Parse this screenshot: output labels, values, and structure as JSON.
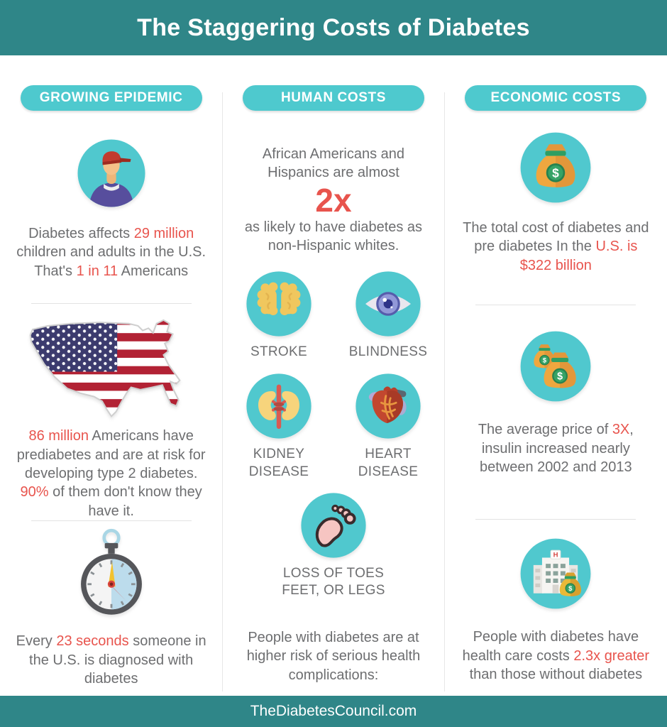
{
  "header": {
    "title": "The Staggering Costs of Diabetes"
  },
  "footer": {
    "site": "TheDiabetesCouncil.com"
  },
  "colors": {
    "banner_teal": "#2f8688",
    "badge_turquoise": "#4ec9ce",
    "icon_circle_turquoise": "#50c8ce",
    "accent_red": "#e8544d",
    "text_gray": "#6d6e70"
  },
  "columns": {
    "epidemic": {
      "badge": "GROWING EPIDEMIC",
      "icons": [
        "person-icon",
        "usa-flag-map-icon",
        "stopwatch-icon"
      ],
      "stat1": [
        {
          "t": "Diabetes affects "
        },
        {
          "t": "29 million",
          "h": true
        },
        {
          "t": " children and adults in the U.S. That's "
        },
        {
          "t": "1 in 11",
          "h": true
        },
        {
          "t": " Americans"
        }
      ],
      "stat2": [
        {
          "t": "86 million",
          "h": true
        },
        {
          "t": " Americans have prediabetes and are at risk for developing type 2 diabetes. "
        },
        {
          "t": "90%",
          "h": true
        },
        {
          "t": " of them don't know they have it."
        }
      ],
      "stat3": [
        {
          "t": "Every "
        },
        {
          "t": "23 seconds",
          "h": true
        },
        {
          "t": " someone in the U.S. is diagnosed with diabetes"
        }
      ]
    },
    "human": {
      "badge": "HUMAN COSTS",
      "intro_line1": "African Americans and Hispanics are almost",
      "big_stat": "2x",
      "intro_line2": "as likely to have diabetes as non-Hispanic whites.",
      "complications": [
        {
          "label": "STROKE",
          "icon": "brain-icon"
        },
        {
          "label": "BLINDNESS",
          "icon": "eye-icon"
        },
        {
          "label": "KIDNEY\nDISEASE",
          "icon": "kidney-icon"
        },
        {
          "label": "HEART\nDISEASE",
          "icon": "heart-icon"
        },
        {
          "label": "LOSS OF TOES\nFEET, OR LEGS",
          "icon": "foot-icon"
        }
      ],
      "outro": "People with diabetes are at higher risk of serious health complications:"
    },
    "economic": {
      "badge": "ECONOMIC COSTS",
      "icons": [
        "money-bag-icon",
        "money-bags-icon",
        "hospital-money-icon"
      ],
      "stat1": [
        {
          "t": "The total cost of diabetes and pre diabetes In the "
        },
        {
          "t": "U.S. is $322 billion",
          "h": true
        }
      ],
      "stat2": [
        {
          "t": "The average price of "
        },
        {
          "t": "3X",
          "h": true
        },
        {
          "t": ", insulin increased nearly between 2002 and 2013"
        }
      ],
      "stat3": [
        {
          "t": "People with diabetes have health care costs "
        },
        {
          "t": "2.3x greater",
          "h": true
        },
        {
          "t": " than those without diabetes"
        }
      ]
    }
  }
}
